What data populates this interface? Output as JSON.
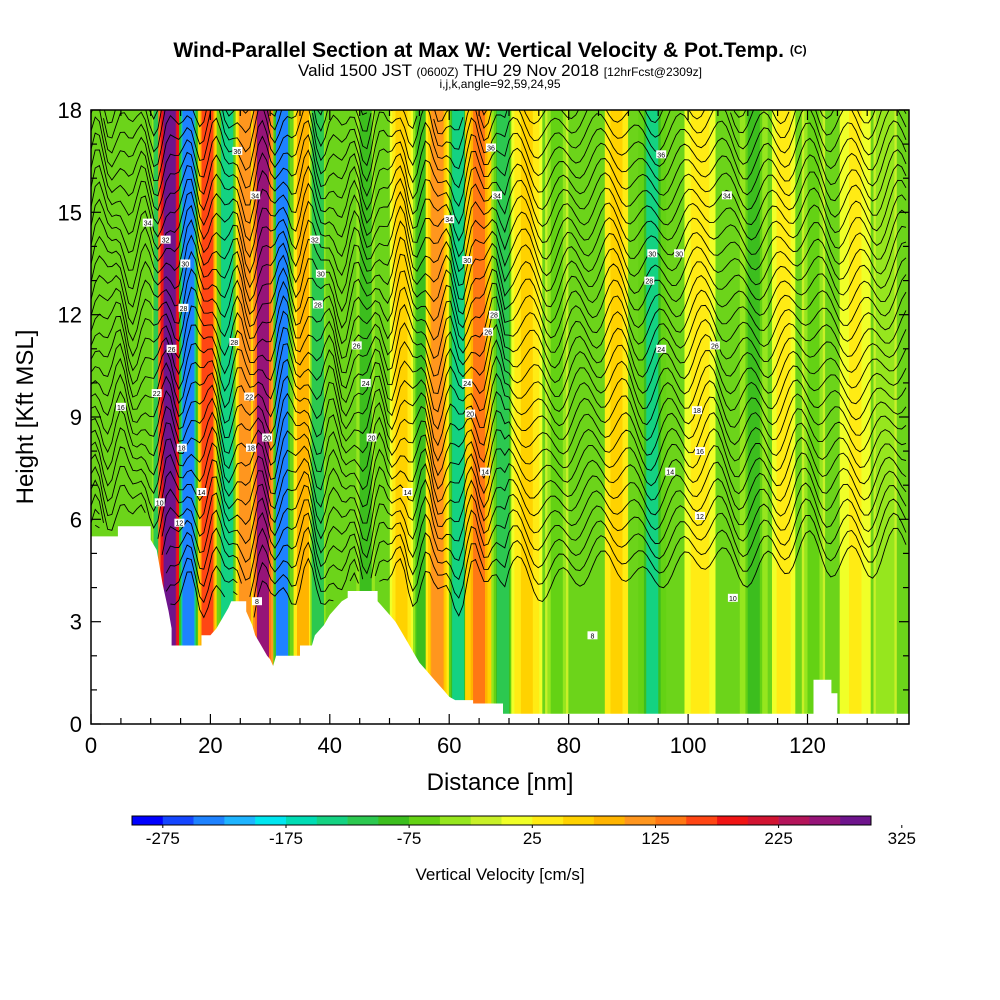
{
  "chart_data": {
    "type": "heatmap",
    "title": "Wind-Parallel Section at Max W: Vertical Velocity & Pot.Temp.",
    "title_tag": "(C)",
    "subtitle_prefix": "Valid 1500 JST",
    "subtitle_utc": "(0600Z)",
    "subtitle_date": "THU 29 Nov 2018",
    "subtitle_fcst": "[12hrFcst@2309z]",
    "subtitle_params": "i,j,k,angle=92,59,24,95",
    "xlabel": "Distance [nm]",
    "ylabel": "Height [Kft MSL]",
    "xlim": [
      0,
      137
    ],
    "ylim": [
      0,
      18
    ],
    "x_ticks": [
      0,
      20,
      40,
      60,
      80,
      100,
      120
    ],
    "y_ticks": [
      0,
      3,
      6,
      9,
      12,
      15,
      18
    ],
    "colorbar": {
      "label": "Vertical Velocity [cm/s]",
      "tick_labels": [
        -275,
        -175,
        -75,
        25,
        125,
        225,
        325
      ],
      "colors": [
        "#0000ff",
        "#1446ff",
        "#1e82ff",
        "#1eb4ff",
        "#00e6f0",
        "#00dcb4",
        "#14d282",
        "#2cc850",
        "#3cbe1e",
        "#64d214",
        "#96e61e",
        "#c8f028",
        "#f0ff28",
        "#ffeb14",
        "#ffd200",
        "#ffb400",
        "#ff961e",
        "#ff7814",
        "#ff4614",
        "#f01414",
        "#d21432",
        "#b4145a",
        "#961478",
        "#6e148c"
      ]
    },
    "vertical_velocity_bands": [
      {
        "x": 11.5,
        "w": 1.0,
        "v": -120
      },
      {
        "x": 13.2,
        "w": 1.5,
        "v": 320
      },
      {
        "x": 16.3,
        "w": 1.2,
        "v": -250
      },
      {
        "x": 19.5,
        "w": 1.2,
        "v": 150
      },
      {
        "x": 22.8,
        "w": 1.0,
        "v": -150
      },
      {
        "x": 25.8,
        "w": 1.2,
        "v": 100
      },
      {
        "x": 28.8,
        "w": 1.3,
        "v": 250
      },
      {
        "x": 32.0,
        "w": 1.0,
        "v": -230
      },
      {
        "x": 35.5,
        "w": 1.2,
        "v": 75
      },
      {
        "x": 38.0,
        "w": 1.0,
        "v": -120
      },
      {
        "x": 46.0,
        "w": 1.2,
        "v": -80
      },
      {
        "x": 52.0,
        "w": 1.5,
        "v": 60
      },
      {
        "x": 55.5,
        "w": 1.2,
        "v": -100
      },
      {
        "x": 58.0,
        "w": 1.5,
        "v": 120
      },
      {
        "x": 61.5,
        "w": 1.2,
        "v": -140
      },
      {
        "x": 65.0,
        "w": 1.8,
        "v": 130
      },
      {
        "x": 69.0,
        "w": 1.5,
        "v": -120
      },
      {
        "x": 73.0,
        "w": 2.0,
        "v": 50
      },
      {
        "x": 78.0,
        "w": 1.5,
        "v": -60
      },
      {
        "x": 88.0,
        "w": 1.5,
        "v": 70
      },
      {
        "x": 94.0,
        "w": 1.8,
        "v": -130
      },
      {
        "x": 102.0,
        "w": 2.0,
        "v": 40
      },
      {
        "x": 111.0,
        "w": 1.8,
        "v": -90
      },
      {
        "x": 116.0,
        "w": 1.5,
        "v": 45
      },
      {
        "x": 121.0,
        "w": 1.5,
        "v": -60
      },
      {
        "x": 128.0,
        "w": 2.0,
        "v": 30
      },
      {
        "x": 133.0,
        "w": 1.5,
        "v": -50
      }
    ],
    "terrain": [
      [
        0,
        5.5
      ],
      [
        4.5,
        5.5
      ],
      [
        4.5,
        5.8
      ],
      [
        10,
        5.8
      ],
      [
        10,
        5.4
      ],
      [
        11,
        5.1
      ],
      [
        11.5,
        4.6
      ],
      [
        12,
        4.1
      ],
      [
        12.5,
        3.7
      ],
      [
        13,
        3.3
      ],
      [
        13.5,
        2.8
      ],
      [
        13.5,
        2.3
      ],
      [
        18.5,
        2.3
      ],
      [
        18.5,
        2.6
      ],
      [
        20,
        2.6
      ],
      [
        21,
        2.8
      ],
      [
        22,
        3.1
      ],
      [
        23,
        3.4
      ],
      [
        23.5,
        3.6
      ],
      [
        26,
        3.6
      ],
      [
        26,
        3.3
      ],
      [
        27,
        2.9
      ],
      [
        27.5,
        2.6
      ],
      [
        28.5,
        2.3
      ],
      [
        29.5,
        2.0
      ],
      [
        30,
        1.9
      ],
      [
        30.5,
        1.7
      ],
      [
        31,
        2.0
      ],
      [
        35,
        2.0
      ],
      [
        35,
        2.3
      ],
      [
        37,
        2.3
      ],
      [
        37.5,
        2.6
      ],
      [
        39,
        2.9
      ],
      [
        40,
        3.2
      ],
      [
        41,
        3.4
      ],
      [
        42,
        3.6
      ],
      [
        43,
        3.7
      ],
      [
        43,
        3.9
      ],
      [
        48,
        3.9
      ],
      [
        48,
        3.6
      ],
      [
        49,
        3.4
      ],
      [
        50,
        3.2
      ],
      [
        51,
        3.0
      ],
      [
        52,
        2.7
      ],
      [
        53,
        2.4
      ],
      [
        54,
        2.1
      ],
      [
        55,
        1.8
      ],
      [
        56,
        1.6
      ],
      [
        57,
        1.4
      ],
      [
        58,
        1.2
      ],
      [
        59,
        1.0
      ],
      [
        60,
        0.8
      ],
      [
        61,
        0.7
      ],
      [
        64,
        0.7
      ],
      [
        64,
        0.6
      ],
      [
        69,
        0.6
      ],
      [
        69,
        0.3
      ],
      [
        121,
        0.3
      ],
      [
        121,
        1.3
      ],
      [
        124,
        1.3
      ],
      [
        124,
        0.9
      ],
      [
        125,
        0.9
      ],
      [
        125,
        0.3
      ],
      [
        137,
        0.3
      ]
    ],
    "isentrope_labels": [
      {
        "x": 5,
        "y": 9.3,
        "text": "16"
      },
      {
        "x": 9.5,
        "y": 14.7,
        "text": "34"
      },
      {
        "x": 12.5,
        "y": 14.2,
        "text": "32"
      },
      {
        "x": 11,
        "y": 9.7,
        "text": "22"
      },
      {
        "x": 13.5,
        "y": 11.0,
        "text": "26"
      },
      {
        "x": 15.8,
        "y": 13.5,
        "text": "30"
      },
      {
        "x": 15.5,
        "y": 12.2,
        "text": "28"
      },
      {
        "x": 15.2,
        "y": 8.1,
        "text": "18"
      },
      {
        "x": 18.5,
        "y": 6.8,
        "text": "14"
      },
      {
        "x": 14.8,
        "y": 5.9,
        "text": "12"
      },
      {
        "x": 11.5,
        "y": 6.5,
        "text": "10"
      },
      {
        "x": 24.5,
        "y": 16.8,
        "text": "36"
      },
      {
        "x": 24.0,
        "y": 11.2,
        "text": "28"
      },
      {
        "x": 27.5,
        "y": 15.5,
        "text": "34"
      },
      {
        "x": 26.5,
        "y": 9.6,
        "text": "22"
      },
      {
        "x": 26.8,
        "y": 8.1,
        "text": "18"
      },
      {
        "x": 29.5,
        "y": 8.4,
        "text": "20"
      },
      {
        "x": 27.8,
        "y": 3.6,
        "text": "8"
      },
      {
        "x": 37.5,
        "y": 14.2,
        "text": "32"
      },
      {
        "x": 38.5,
        "y": 13.2,
        "text": "30"
      },
      {
        "x": 38.0,
        "y": 12.3,
        "text": "28"
      },
      {
        "x": 44.5,
        "y": 11.1,
        "text": "26"
      },
      {
        "x": 46.0,
        "y": 10.0,
        "text": "24"
      },
      {
        "x": 47.0,
        "y": 8.4,
        "text": "20"
      },
      {
        "x": 53.0,
        "y": 6.8,
        "text": "14"
      },
      {
        "x": 60.0,
        "y": 14.8,
        "text": "34"
      },
      {
        "x": 63.0,
        "y": 13.6,
        "text": "30"
      },
      {
        "x": 63.0,
        "y": 10.0,
        "text": "24"
      },
      {
        "x": 63.5,
        "y": 9.1,
        "text": "20"
      },
      {
        "x": 67.0,
        "y": 16.9,
        "text": "36"
      },
      {
        "x": 68.0,
        "y": 15.5,
        "text": "34"
      },
      {
        "x": 67.5,
        "y": 12.0,
        "text": "28"
      },
      {
        "x": 66.5,
        "y": 11.5,
        "text": "26"
      },
      {
        "x": 66.0,
        "y": 7.4,
        "text": "14"
      },
      {
        "x": 84.0,
        "y": 2.6,
        "text": "8"
      },
      {
        "x": 95.5,
        "y": 16.7,
        "text": "36"
      },
      {
        "x": 94.0,
        "y": 13.8,
        "text": "30"
      },
      {
        "x": 93.5,
        "y": 13.0,
        "text": "28"
      },
      {
        "x": 95.5,
        "y": 11.0,
        "text": "24"
      },
      {
        "x": 98.5,
        "y": 13.8,
        "text": "30"
      },
      {
        "x": 97.0,
        "y": 7.4,
        "text": "14"
      },
      {
        "x": 101.5,
        "y": 9.2,
        "text": "18"
      },
      {
        "x": 102.0,
        "y": 8.0,
        "text": "16"
      },
      {
        "x": 102.0,
        "y": 6.1,
        "text": "12"
      },
      {
        "x": 106.5,
        "y": 15.5,
        "text": "34"
      },
      {
        "x": 104.5,
        "y": 11.1,
        "text": "26"
      },
      {
        "x": 107.5,
        "y": 3.7,
        "text": "10"
      }
    ]
  }
}
